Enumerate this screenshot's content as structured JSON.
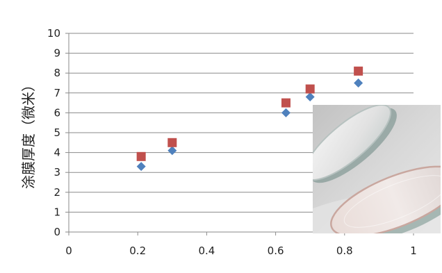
{
  "chart_data": {
    "type": "scatter",
    "title": "",
    "xlabel": "",
    "ylabel": "涂膜厚度（微米）",
    "xlim": [
      0,
      1
    ],
    "ylim": [
      0,
      10
    ],
    "x_ticks": [
      "0",
      "0.2",
      "0.4",
      "0.6",
      "0.8",
      "1"
    ],
    "y_ticks": [
      "0",
      "1",
      "2",
      "3",
      "4",
      "5",
      "6",
      "7",
      "8",
      "9",
      "10"
    ],
    "grid": "horizontal",
    "legend": "none",
    "series": [
      {
        "marker": "diamond",
        "color": "#4F81BD",
        "points": [
          [
            0.21,
            3.3
          ],
          [
            0.3,
            4.1
          ],
          [
            0.63,
            6.0
          ],
          [
            0.7,
            6.8
          ],
          [
            0.84,
            7.5
          ]
        ]
      },
      {
        "marker": "square",
        "color": "#C0504D",
        "points": [
          [
            0.21,
            3.8
          ],
          [
            0.3,
            4.5
          ],
          [
            0.63,
            6.5
          ],
          [
            0.7,
            7.2
          ],
          [
            0.84,
            8.1
          ]
        ]
      }
    ]
  },
  "inset_photo": {
    "subject": "lenses-photo",
    "colors": [
      "#c9c9c9",
      "#e7e7e7",
      "#9aa9a6",
      "#d9b7ad"
    ]
  }
}
